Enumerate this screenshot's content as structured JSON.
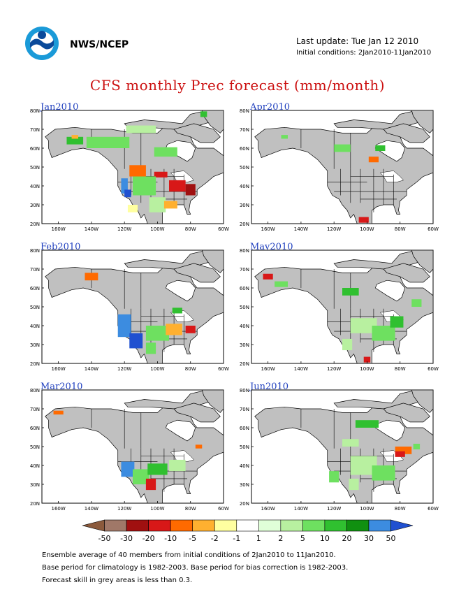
{
  "header": {
    "org": "NWS/NCEP",
    "last_update": "Last update: Tue Jan 12 2010",
    "initial_conditions": "Initial conditions: 2Jan2010-11Jan2010",
    "logo_icon": "noaa-logo-icon"
  },
  "title": "CFS monthly Prec forecast (mm/month)",
  "panels": [
    {
      "label": "Jan2010"
    },
    {
      "label": "Apr2010"
    },
    {
      "label": "Feb2010"
    },
    {
      "label": "May2010"
    },
    {
      "label": "Mar2010"
    },
    {
      "label": "Jun2010"
    }
  ],
  "axes": {
    "lat_labels": [
      "80N",
      "70N",
      "60N",
      "50N",
      "40N",
      "30N",
      "20N"
    ],
    "lon_labels": [
      "160W",
      "140W",
      "120W",
      "100W",
      "80W",
      "60W"
    ]
  },
  "colorbar": {
    "labels": [
      "-50",
      "-30",
      "-20",
      "-10",
      "-5",
      "-2",
      "-1",
      "1",
      "2",
      "5",
      "10",
      "20",
      "30",
      "50"
    ],
    "colors": [
      "#8b5a3c",
      "#a07868",
      "#a01010",
      "#d81818",
      "#ff6a00",
      "#ffb030",
      "#ffffa0",
      "#ffffff",
      "#e0ffd8",
      "#b8f0a0",
      "#6ee060",
      "#30c030",
      "#109010",
      "#3c8ce0",
      "#2050d0"
    ]
  },
  "footer": [
    "Ensemble average of 40 members from initial conditions of 2Jan2010 to 11Jan2010.",
    "Base period for climatology is 1982-2003. Base period for bias correction is 1982-2003.",
    "Forecast skill in grey areas is less than 0.3."
  ],
  "colors": {
    "land_grey": "#c0c0c0",
    "title_red": "#cc1111",
    "label_blue": "#1f3fbf"
  }
}
